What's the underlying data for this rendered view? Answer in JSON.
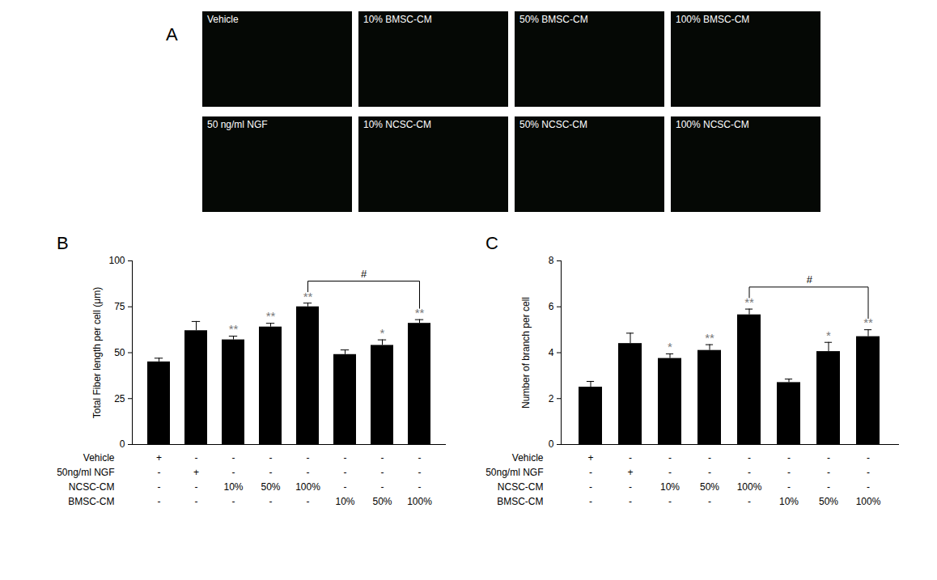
{
  "figure_panel": {
    "label": "A",
    "images": [
      "Vehicle",
      "10% BMSC-CM",
      "50% BMSC-CM",
      "100% BMSC-CM",
      "50 ng/ml NGF",
      "10% NCSC-CM",
      "50% NCSC-CM",
      "100% NCSC-CM"
    ]
  },
  "chart_data": [
    {
      "type": "bar",
      "panel_label": "B",
      "y_label": "Total Fiber length per cell (μm)",
      "categories": [
        null,
        null,
        null,
        null,
        null,
        null,
        null,
        null
      ],
      "values": [
        45,
        62,
        57,
        64,
        75,
        49,
        54,
        66
      ],
      "errors": [
        2,
        5,
        2,
        2,
        2,
        2.5,
        3,
        2
      ],
      "significance": [
        "",
        "",
        "**",
        "**",
        "**",
        "",
        "*",
        "**"
      ],
      "comparison": {
        "from": 4,
        "to": 7,
        "label": "#"
      },
      "condition_rows": [
        {
          "label": "Vehicle",
          "cells": [
            "+",
            "-",
            "-",
            "-",
            "-",
            "-",
            "-",
            "-"
          ]
        },
        {
          "label": "50ng/ml NGF",
          "cells": [
            "-",
            "+",
            "-",
            "-",
            "-",
            "-",
            "-",
            "-"
          ]
        },
        {
          "label": "NCSC-CM",
          "cells": [
            "-",
            "-",
            "10%",
            "50%",
            "100%",
            "-",
            "-",
            "-"
          ]
        },
        {
          "label": "BMSC-CM",
          "cells": [
            "-",
            "-",
            "-",
            "-",
            "-",
            "10%",
            "50%",
            "100%"
          ]
        }
      ],
      "color": "#000000",
      "ylim": [
        0,
        100
      ],
      "yticks": [
        0,
        25,
        50,
        75,
        100
      ],
      "grid": false,
      "data_labels": false,
      "tick_labels": "y"
    },
    {
      "type": "bar",
      "panel_label": "C",
      "y_label": "Number of branch per cell",
      "categories": [
        null,
        null,
        null,
        null,
        null,
        null,
        null,
        null
      ],
      "values": [
        2.5,
        4.4,
        3.75,
        4.1,
        5.65,
        2.7,
        4.05,
        4.7
      ],
      "errors": [
        0.25,
        0.45,
        0.2,
        0.25,
        0.25,
        0.15,
        0.4,
        0.3
      ],
      "significance": [
        "",
        "",
        "*",
        "**",
        "**",
        "",
        "*",
        "**"
      ],
      "comparison": {
        "from": 4,
        "to": 7,
        "label": "#"
      },
      "condition_rows": [
        {
          "label": "Vehicle",
          "cells": [
            "+",
            "-",
            "-",
            "-",
            "-",
            "-",
            "-",
            "-"
          ]
        },
        {
          "label": "50ng/ml NGF",
          "cells": [
            "-",
            "+",
            "-",
            "-",
            "-",
            "-",
            "-",
            "-"
          ]
        },
        {
          "label": "NCSC-CM",
          "cells": [
            "-",
            "-",
            "10%",
            "50%",
            "100%",
            "-",
            "-",
            "-"
          ]
        },
        {
          "label": "BMSC-CM",
          "cells": [
            "-",
            "-",
            "-",
            "-",
            "-",
            "10%",
            "50%",
            "100%"
          ]
        }
      ],
      "color": "#000000",
      "ylim": [
        0,
        8
      ],
      "yticks": [
        0,
        2,
        4,
        6,
        8
      ],
      "grid": false,
      "data_labels": false,
      "tick_labels": "y"
    }
  ]
}
